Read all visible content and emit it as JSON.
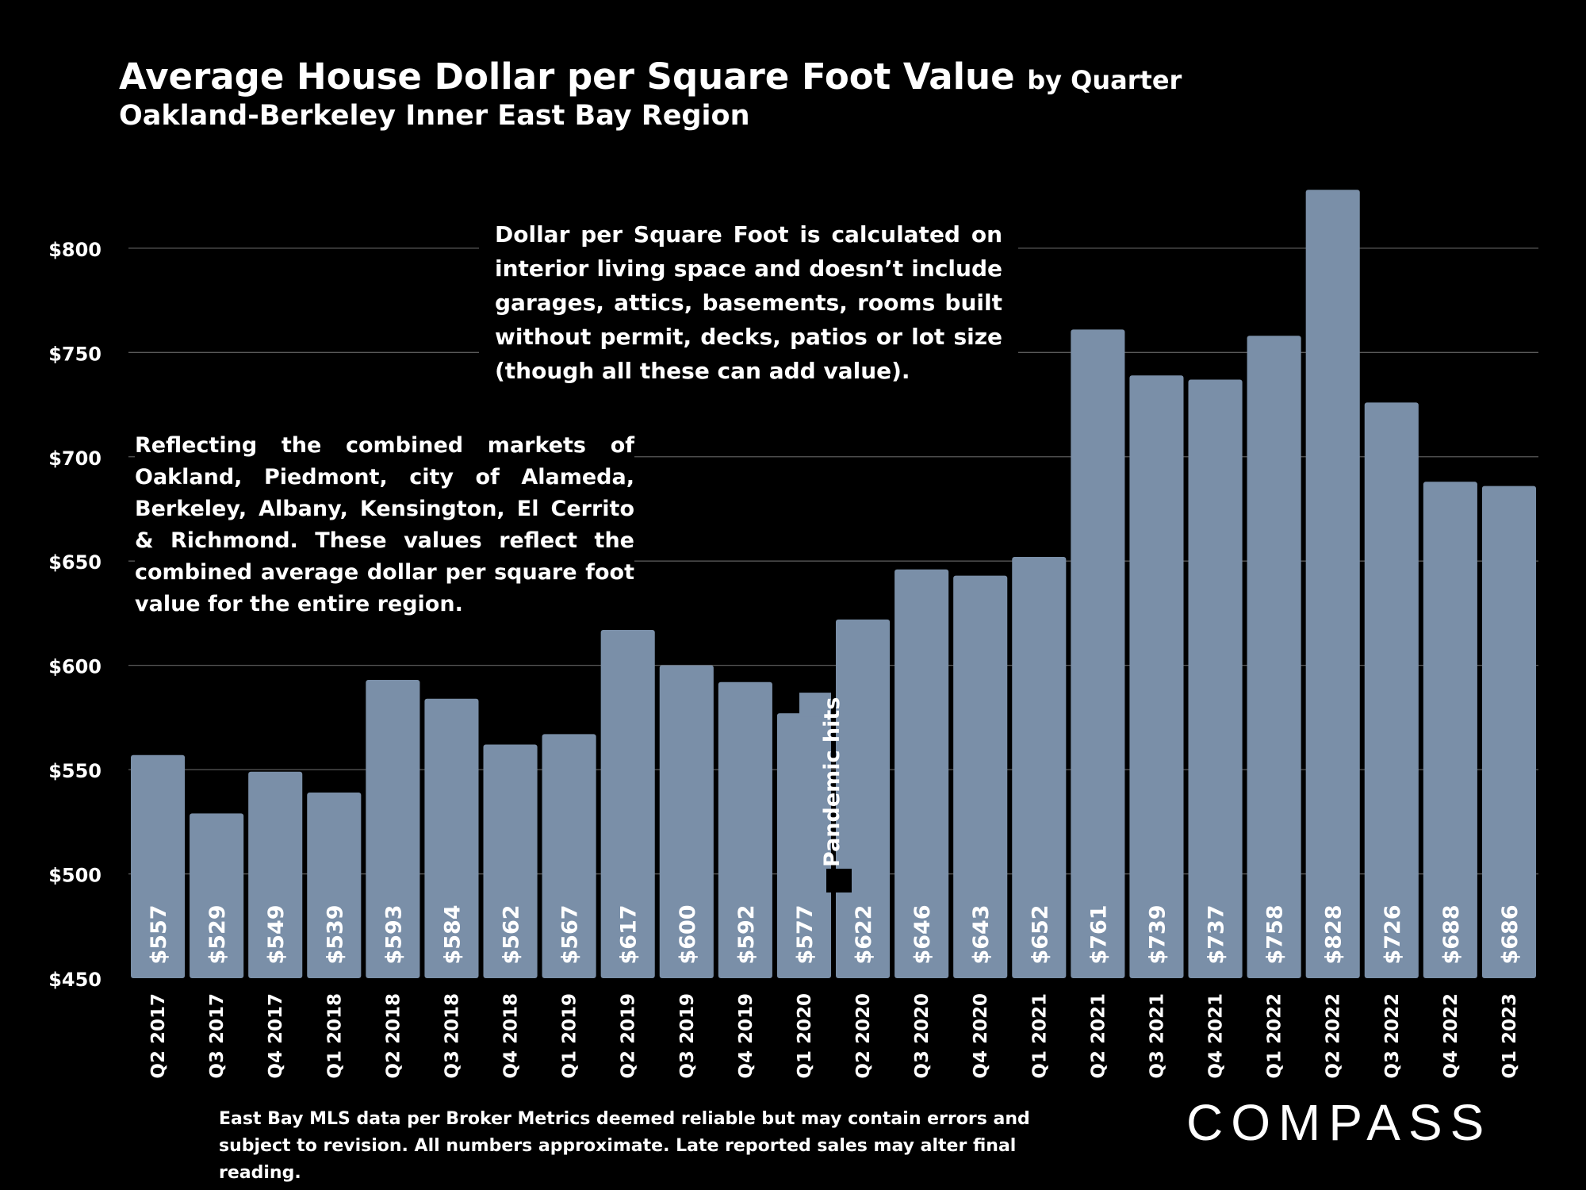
{
  "header": {
    "title": "Average House Dollar per Square Foot Value",
    "title_suffix": "by Quarter",
    "subtitle": "Oakland-Berkeley Inner East Bay Region"
  },
  "notes": {
    "definition": "Dollar per Square Foot is calculated on interior living space and doesn’t include garages, attics, basements, rooms built without permit, decks, patios or lot size (though all these can add value).",
    "region": "Reflecting the combined markets of Oakland, Piedmont, city of Alameda, Berkeley, Albany, Kensington, El Cerrito & Richmond. These values reflect the combined average dollar per square foot value for the entire region."
  },
  "footer": {
    "source": "East Bay MLS data per Broker Metrics deemed reliable but may contain errors and subject to revision. All numbers approximate. Late reported sales may alter final reading.",
    "brand": "COMPASS"
  },
  "chart_data": {
    "type": "bar",
    "title": "Average House Dollar per Square Foot Value by Quarter",
    "subtitle": "Oakland-Berkeley Inner East Bay Region",
    "categories": [
      "Q2 2017",
      "Q3 2017",
      "Q4 2017",
      "Q1 2018",
      "Q2 2018",
      "Q3 2018",
      "Q4 2018",
      "Q1 2019",
      "Q2 2019",
      "Q3 2019",
      "Q4 2019",
      "Q1 2020",
      "Q2 2020",
      "Q3 2020",
      "Q4 2020",
      "Q1 2021",
      "Q2 2021",
      "Q3 2021",
      "Q4 2021",
      "Q1 2022",
      "Q2 2022",
      "Q3 2022",
      "Q4 2022",
      "Q1 2023"
    ],
    "values": [
      557,
      529,
      549,
      539,
      593,
      584,
      562,
      567,
      617,
      600,
      592,
      577,
      622,
      646,
      643,
      652,
      761,
      739,
      737,
      758,
      828,
      726,
      688,
      686
    ],
    "data_labels": [
      "$557",
      "$529",
      "$549",
      "$539",
      "$593",
      "$584",
      "$562",
      "$567",
      "$617",
      "$600",
      "$592",
      "$577",
      "$622",
      "$646",
      "$643",
      "$652",
      "$761",
      "$739",
      "$737",
      "$758",
      "$828",
      "$726",
      "$688",
      "$686"
    ],
    "ylim": [
      450,
      830
    ],
    "yticks": [
      450,
      500,
      550,
      600,
      650,
      700,
      750,
      800
    ],
    "ytick_labels": [
      "$450",
      "$500",
      "$550",
      "$600",
      "$650",
      "$700",
      "$750",
      "$800"
    ],
    "grid": true,
    "color": "#7a8fa8",
    "annotation": {
      "category": "Q1 2020",
      "text": "Pandemic hits"
    }
  }
}
